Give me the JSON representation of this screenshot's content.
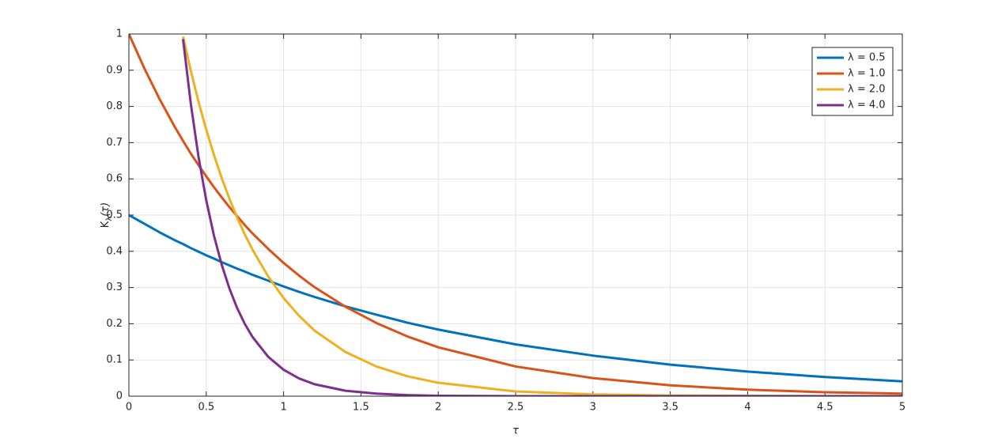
{
  "chart_data": {
    "type": "line",
    "xlabel": "τ",
    "ylabel": [
      "K",
      "λ",
      "(τ)"
    ],
    "x": [
      0,
      0.1,
      0.2,
      0.3,
      0.35,
      0.4,
      0.45,
      0.5,
      0.55,
      0.6,
      0.65,
      0.7,
      0.75,
      0.8,
      0.9,
      1,
      1.1,
      1.2,
      1.4,
      1.6,
      1.8,
      2,
      2.5,
      3,
      3.5,
      4,
      4.5,
      5
    ],
    "series": [
      {
        "name": "λ = 0.5",
        "color": "#0072bd",
        "values": [
          0.5,
          0.476,
          0.452,
          0.43,
          0.42,
          0.409,
          0.399,
          0.389,
          0.38,
          0.37,
          0.361,
          0.352,
          0.344,
          0.335,
          0.319,
          0.303,
          0.288,
          0.274,
          0.248,
          0.225,
          0.203,
          0.184,
          0.143,
          0.112,
          0.087,
          0.068,
          0.053,
          0.041
        ]
      },
      {
        "name": "λ = 1.0",
        "color": "#d95319",
        "values": [
          1,
          0.905,
          0.819,
          0.741,
          0.705,
          0.67,
          0.638,
          0.607,
          0.577,
          0.549,
          0.522,
          0.497,
          0.472,
          0.449,
          0.407,
          0.368,
          0.333,
          0.301,
          0.247,
          0.202,
          0.165,
          0.135,
          0.082,
          0.05,
          0.03,
          0.018,
          0.011,
          0.007
        ]
      },
      {
        "name": "λ = 2.0",
        "color": "#edb120",
        "values": [
          null,
          null,
          null,
          null,
          0.993,
          0.899,
          0.813,
          0.736,
          0.666,
          0.602,
          0.545,
          0.493,
          0.446,
          0.404,
          0.331,
          0.271,
          0.222,
          0.181,
          0.122,
          0.082,
          0.055,
          0.037,
          0.013,
          0.005,
          0.002,
          0.001,
          0,
          0
        ]
      },
      {
        "name": "λ = 4.0",
        "color": "#7e2f8e",
        "values": [
          null,
          null,
          null,
          null,
          0.986,
          0.808,
          0.661,
          0.541,
          0.443,
          0.363,
          0.297,
          0.243,
          0.199,
          0.163,
          0.109,
          0.073,
          0.049,
          0.033,
          0.015,
          0.007,
          0.003,
          0.001,
          0,
          0,
          0,
          0,
          0,
          0
        ]
      }
    ],
    "xlim": [
      0,
      5
    ],
    "xticks": [
      0,
      0.5,
      1,
      1.5,
      2,
      2.5,
      3,
      3.5,
      4,
      4.5,
      5
    ],
    "ylim": [
      0,
      1
    ],
    "yticks": [
      0,
      0.1,
      0.2,
      0.3,
      0.4,
      0.5,
      0.6,
      0.7,
      0.8,
      0.9,
      1
    ],
    "grid": true,
    "legend": "top-right"
  }
}
